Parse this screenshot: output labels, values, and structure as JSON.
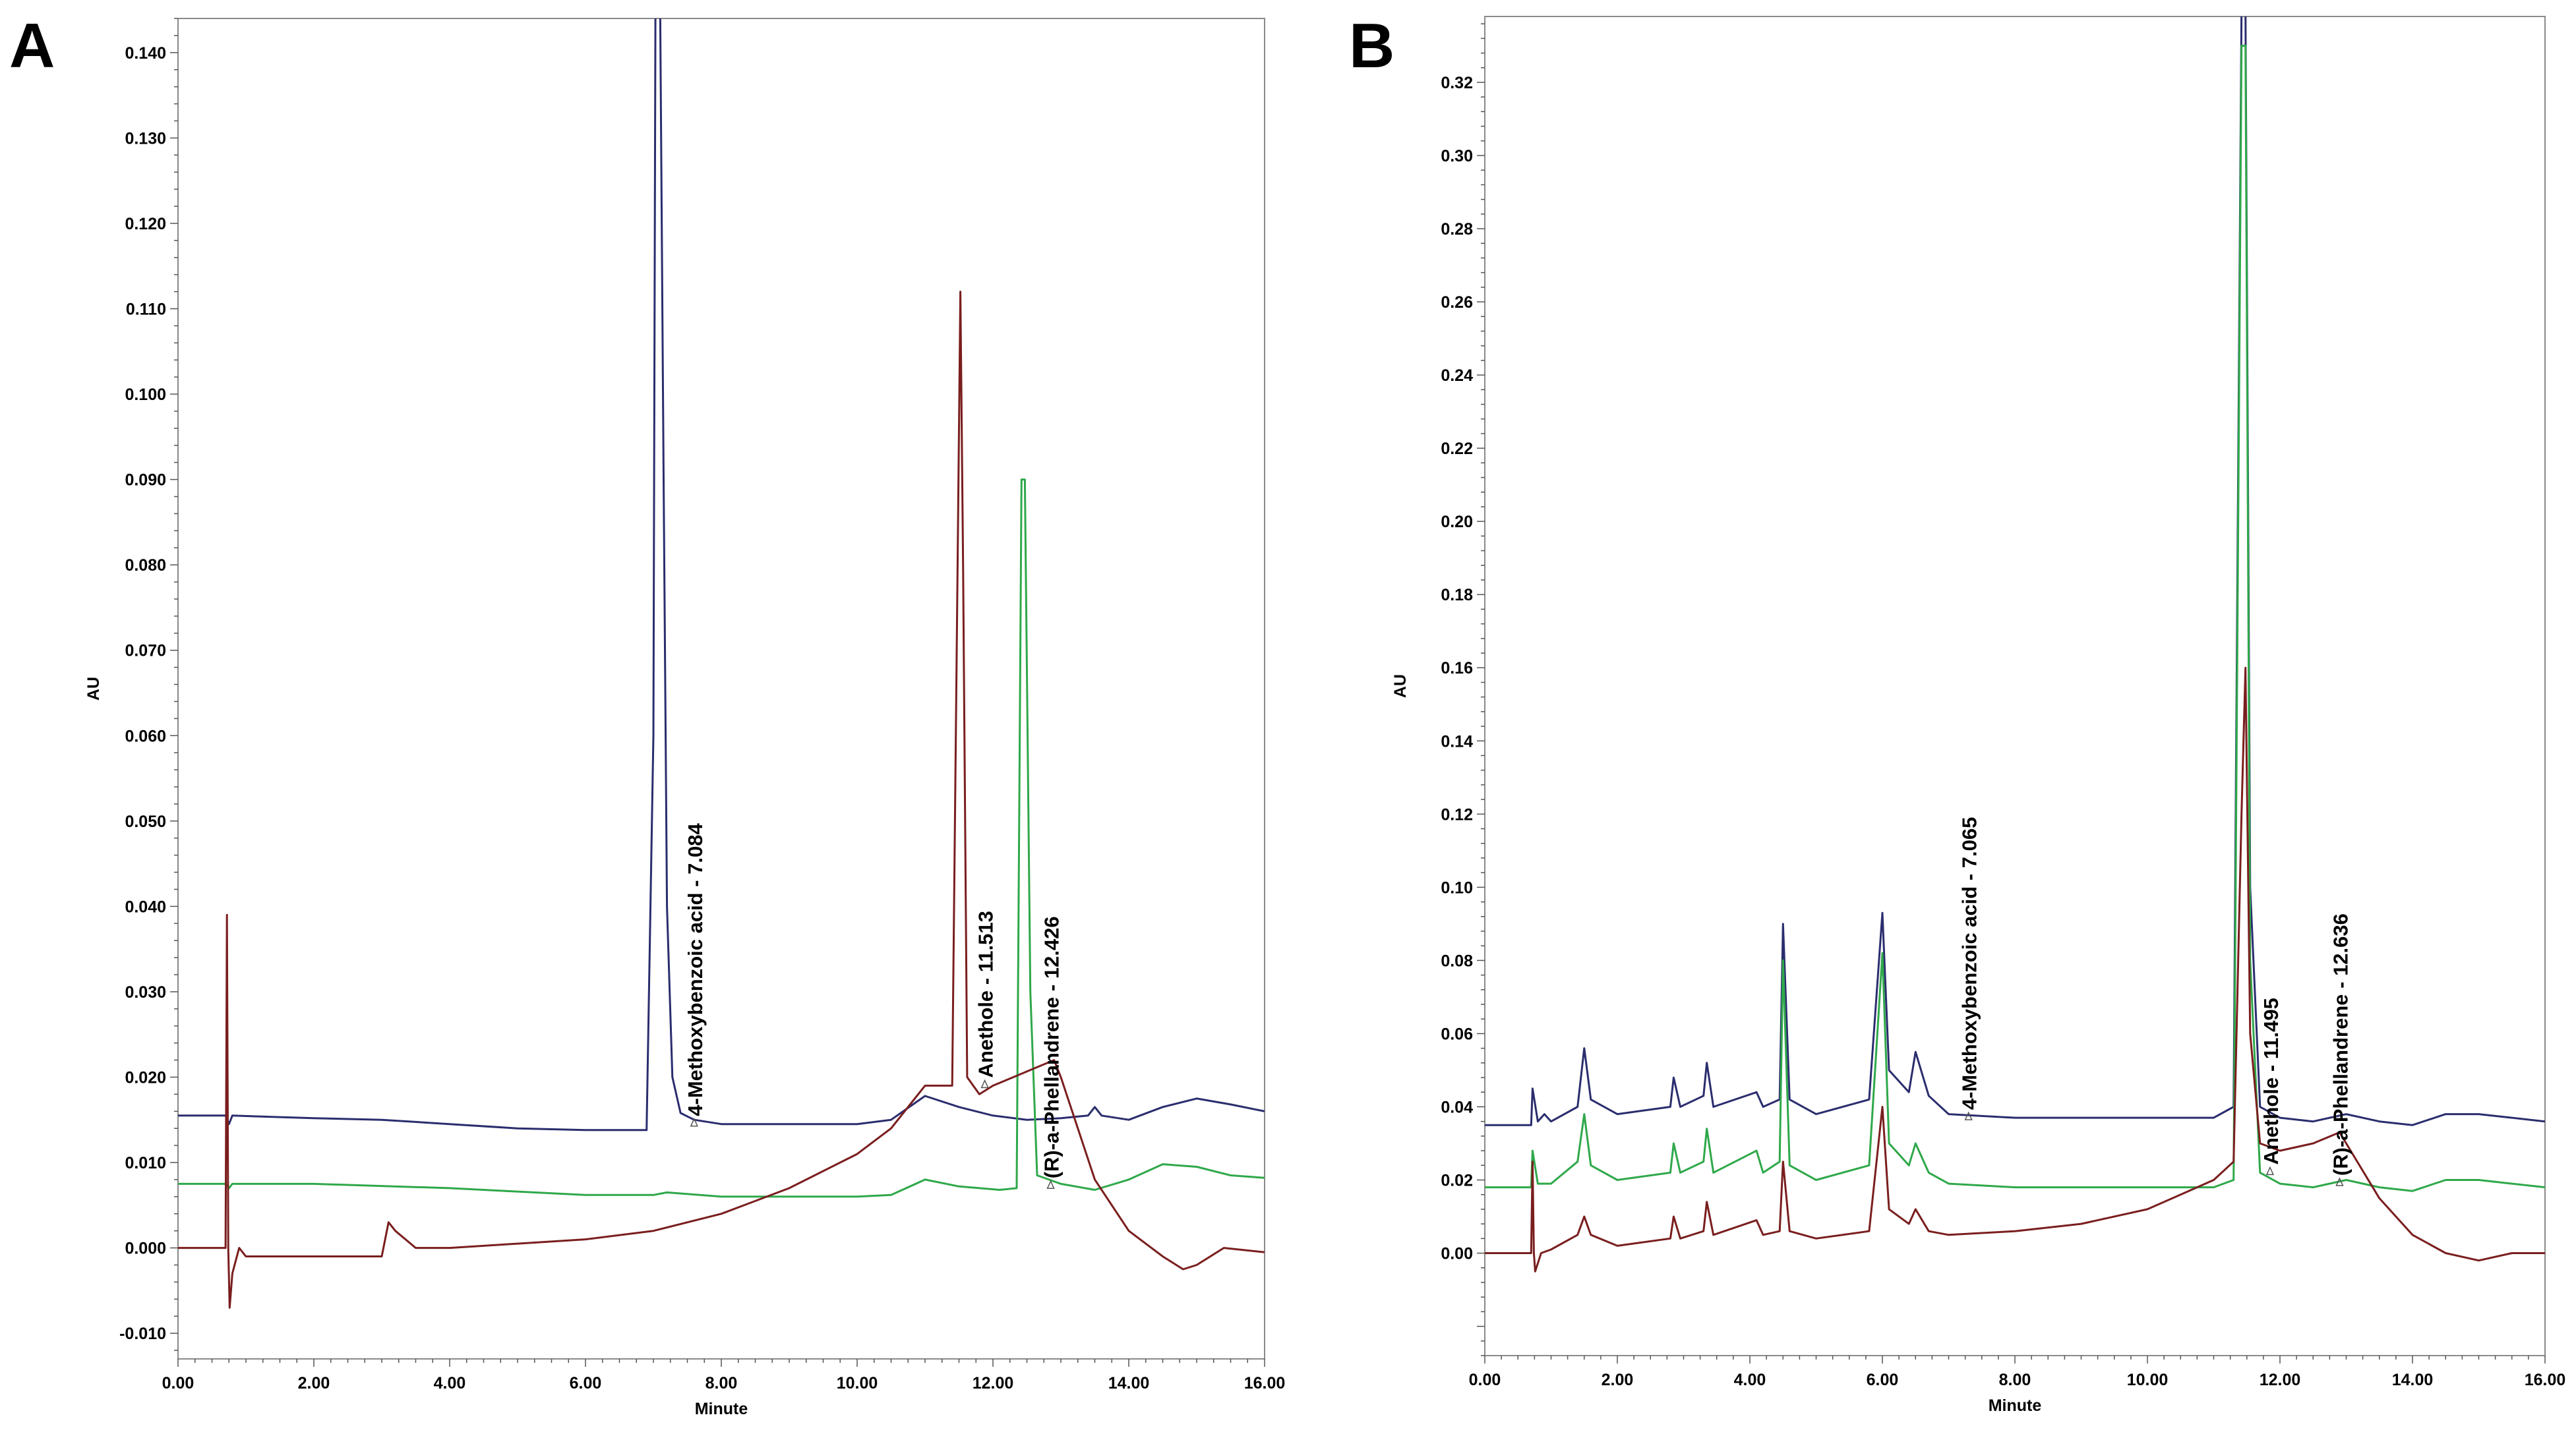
{
  "chart_data": [
    {
      "panel": "A",
      "type": "line",
      "xlabel": "Minute",
      "ylabel": "AU",
      "xlim": [
        0,
        16
      ],
      "ylim": [
        -0.013,
        0.144
      ],
      "x_ticks": [
        "0.00",
        "2.00",
        "4.00",
        "6.00",
        "8.00",
        "10.00",
        "12.00",
        "14.00",
        "16.00"
      ],
      "y_ticks": [
        "-0.010",
        "0.000",
        "0.010",
        "0.020",
        "0.030",
        "0.040",
        "0.050",
        "0.060",
        "0.070",
        "0.080",
        "0.090",
        "0.100",
        "0.110",
        "0.120",
        "0.130",
        "0.140"
      ],
      "series": [
        {
          "name": "blue",
          "color": "#2b2d6e",
          "points": [
            [
              0,
              0.0155
            ],
            [
              0.7,
              0.0155
            ],
            [
              0.75,
              0.0145
            ],
            [
              0.8,
              0.0155
            ],
            [
              2,
              0.0152
            ],
            [
              3,
              0.015
            ],
            [
              4,
              0.0145
            ],
            [
              5,
              0.014
            ],
            [
              6,
              0.0138
            ],
            [
              6.9,
              0.0138
            ],
            [
              7.0,
              0.06
            ],
            [
              7.03,
              0.145
            ],
            [
              7.1,
              0.145
            ],
            [
              7.15,
              0.09
            ],
            [
              7.2,
              0.04
            ],
            [
              7.28,
              0.02
            ],
            [
              7.4,
              0.0158
            ],
            [
              7.6,
              0.015
            ],
            [
              8,
              0.0145
            ],
            [
              9,
              0.0145
            ],
            [
              10,
              0.0145
            ],
            [
              10.5,
              0.015
            ],
            [
              11,
              0.0178
            ],
            [
              11.5,
              0.0165
            ],
            [
              12,
              0.0155
            ],
            [
              12.5,
              0.015
            ],
            [
              13,
              0.0152
            ],
            [
              13.4,
              0.0155
            ],
            [
              13.5,
              0.0165
            ],
            [
              13.6,
              0.0155
            ],
            [
              14,
              0.015
            ],
            [
              14.5,
              0.0165
            ],
            [
              15,
              0.0175
            ],
            [
              15.5,
              0.0168
            ],
            [
              16,
              0.016
            ]
          ]
        },
        {
          "name": "green",
          "color": "#2fa84a",
          "points": [
            [
              0,
              0.0075
            ],
            [
              0.7,
              0.0075
            ],
            [
              0.75,
              0.007
            ],
            [
              0.8,
              0.0075
            ],
            [
              2,
              0.0075
            ],
            [
              4,
              0.007
            ],
            [
              5,
              0.0066
            ],
            [
              6,
              0.0062
            ],
            [
              7,
              0.0062
            ],
            [
              7.2,
              0.0065
            ],
            [
              8,
              0.006
            ],
            [
              9,
              0.006
            ],
            [
              10,
              0.006
            ],
            [
              10.5,
              0.0062
            ],
            [
              11,
              0.008
            ],
            [
              11.5,
              0.0072
            ],
            [
              12.1,
              0.0068
            ],
            [
              12.35,
              0.007
            ],
            [
              12.42,
              0.09
            ],
            [
              12.47,
              0.09
            ],
            [
              12.55,
              0.03
            ],
            [
              12.65,
              0.0085
            ],
            [
              13,
              0.0075
            ],
            [
              13.5,
              0.0068
            ],
            [
              14,
              0.008
            ],
            [
              14.5,
              0.0098
            ],
            [
              15,
              0.0095
            ],
            [
              15.5,
              0.0085
            ],
            [
              16,
              0.0082
            ]
          ]
        },
        {
          "name": "red",
          "color": "#7a1e1e",
          "points": [
            [
              0,
              0.0
            ],
            [
              0.7,
              0.0
            ],
            [
              0.72,
              0.039
            ],
            [
              0.74,
              0.0
            ],
            [
              0.76,
              -0.007
            ],
            [
              0.8,
              -0.003
            ],
            [
              0.9,
              0.0
            ],
            [
              1,
              -0.001
            ],
            [
              2,
              -0.001
            ],
            [
              3,
              -0.001
            ],
            [
              3.1,
              0.003
            ],
            [
              3.2,
              0.002
            ],
            [
              3.5,
              0.0
            ],
            [
              4,
              0.0
            ],
            [
              5,
              0.0005
            ],
            [
              6,
              0.001
            ],
            [
              7,
              0.002
            ],
            [
              8,
              0.004
            ],
            [
              9,
              0.007
            ],
            [
              10,
              0.011
            ],
            [
              10.5,
              0.014
            ],
            [
              11,
              0.019
            ],
            [
              11.4,
              0.019
            ],
            [
              11.48,
              0.08
            ],
            [
              11.52,
              0.112
            ],
            [
              11.56,
              0.08
            ],
            [
              11.62,
              0.02
            ],
            [
              11.8,
              0.018
            ],
            [
              12,
              0.019
            ],
            [
              12.3,
              0.02
            ],
            [
              12.6,
              0.021
            ],
            [
              12.9,
              0.022
            ],
            [
              13,
              0.02
            ],
            [
              13.5,
              0.008
            ],
            [
              14,
              0.002
            ],
            [
              14.5,
              -0.001
            ],
            [
              14.8,
              -0.0025
            ],
            [
              15,
              -0.002
            ],
            [
              15.4,
              0.0
            ],
            [
              16,
              -0.0005
            ]
          ]
        }
      ],
      "annotations": [
        {
          "text": "4-Methoxybenzoic acid - 7.084",
          "x": 7.6,
          "y": 0.0145
        },
        {
          "text": "Anethole - 11.513",
          "x": 11.88,
          "y": 0.019
        },
        {
          "text": "(R)-a-Phellandrene - 12.426",
          "x": 12.85,
          "y": 0.0072
        }
      ]
    },
    {
      "panel": "B",
      "type": "line",
      "xlabel": "Minute",
      "ylabel": "AU",
      "xlim": [
        0,
        16
      ],
      "ylim": [
        -0.028,
        0.338
      ],
      "x_ticks": [
        "0.00",
        "2.00",
        "4.00",
        "6.00",
        "8.00",
        "10.00",
        "12.00",
        "14.00",
        "16.00"
      ],
      "y_ticks": [
        "0.00",
        "0.02",
        "0.04",
        "0.06",
        "0.08",
        "0.10",
        "0.12",
        "0.14",
        "0.16",
        "0.18",
        "0.20",
        "0.22",
        "0.24",
        "0.26",
        "0.28",
        "0.30",
        "0.32"
      ],
      "series": [
        {
          "name": "blue",
          "color": "#2b2d6e",
          "points": [
            [
              0,
              0.035
            ],
            [
              0.7,
              0.035
            ],
            [
              0.72,
              0.045
            ],
            [
              0.8,
              0.036
            ],
            [
              0.9,
              0.038
            ],
            [
              1,
              0.036
            ],
            [
              1.4,
              0.04
            ],
            [
              1.5,
              0.056
            ],
            [
              1.6,
              0.042
            ],
            [
              2,
              0.038
            ],
            [
              2.8,
              0.04
            ],
            [
              2.85,
              0.048
            ],
            [
              2.95,
              0.04
            ],
            [
              3.3,
              0.043
            ],
            [
              3.35,
              0.052
            ],
            [
              3.45,
              0.04
            ],
            [
              4.1,
              0.044
            ],
            [
              4.2,
              0.04
            ],
            [
              4.45,
              0.042
            ],
            [
              4.5,
              0.09
            ],
            [
              4.6,
              0.042
            ],
            [
              5,
              0.038
            ],
            [
              5.8,
              0.042
            ],
            [
              6.0,
              0.093
            ],
            [
              6.1,
              0.05
            ],
            [
              6.4,
              0.044
            ],
            [
              6.5,
              0.055
            ],
            [
              6.7,
              0.043
            ],
            [
              7,
              0.038
            ],
            [
              8,
              0.037
            ],
            [
              9,
              0.037
            ],
            [
              10,
              0.037
            ],
            [
              11,
              0.037
            ],
            [
              11.3,
              0.04
            ],
            [
              11.42,
              0.34
            ],
            [
              11.48,
              0.34
            ],
            [
              11.55,
              0.1
            ],
            [
              11.7,
              0.04
            ],
            [
              12,
              0.037
            ],
            [
              12.5,
              0.036
            ],
            [
              13,
              0.038
            ],
            [
              13.5,
              0.036
            ],
            [
              14,
              0.035
            ],
            [
              14.5,
              0.038
            ],
            [
              15,
              0.038
            ],
            [
              15.5,
              0.037
            ],
            [
              16,
              0.036
            ]
          ]
        },
        {
          "name": "green",
          "color": "#2fa84a",
          "points": [
            [
              0,
              0.018
            ],
            [
              0.7,
              0.018
            ],
            [
              0.72,
              0.028
            ],
            [
              0.8,
              0.019
            ],
            [
              1,
              0.019
            ],
            [
              1.4,
              0.025
            ],
            [
              1.5,
              0.038
            ],
            [
              1.6,
              0.024
            ],
            [
              2,
              0.02
            ],
            [
              2.8,
              0.022
            ],
            [
              2.85,
              0.03
            ],
            [
              2.95,
              0.022
            ],
            [
              3.3,
              0.025
            ],
            [
              3.35,
              0.034
            ],
            [
              3.45,
              0.022
            ],
            [
              4.1,
              0.028
            ],
            [
              4.2,
              0.022
            ],
            [
              4.45,
              0.025
            ],
            [
              4.5,
              0.08
            ],
            [
              4.6,
              0.024
            ],
            [
              5,
              0.02
            ],
            [
              5.8,
              0.024
            ],
            [
              6.0,
              0.082
            ],
            [
              6.1,
              0.03
            ],
            [
              6.4,
              0.024
            ],
            [
              6.5,
              0.03
            ],
            [
              6.7,
              0.022
            ],
            [
              7,
              0.019
            ],
            [
              8,
              0.018
            ],
            [
              9,
              0.018
            ],
            [
              10,
              0.018
            ],
            [
              11,
              0.018
            ],
            [
              11.3,
              0.02
            ],
            [
              11.42,
              0.33
            ],
            [
              11.48,
              0.33
            ],
            [
              11.55,
              0.08
            ],
            [
              11.7,
              0.022
            ],
            [
              12,
              0.019
            ],
            [
              12.5,
              0.018
            ],
            [
              13,
              0.02
            ],
            [
              13.5,
              0.018
            ],
            [
              14,
              0.017
            ],
            [
              14.5,
              0.02
            ],
            [
              15,
              0.02
            ],
            [
              15.5,
              0.019
            ],
            [
              16,
              0.018
            ]
          ]
        },
        {
          "name": "red",
          "color": "#7a1e1e",
          "points": [
            [
              0,
              0.0
            ],
            [
              0.7,
              0.0
            ],
            [
              0.72,
              0.025
            ],
            [
              0.74,
              0.0
            ],
            [
              0.76,
              -0.005
            ],
            [
              0.85,
              0.0
            ],
            [
              1,
              0.001
            ],
            [
              1.4,
              0.005
            ],
            [
              1.5,
              0.01
            ],
            [
              1.6,
              0.005
            ],
            [
              2,
              0.002
            ],
            [
              2.8,
              0.004
            ],
            [
              2.85,
              0.01
            ],
            [
              2.95,
              0.004
            ],
            [
              3.3,
              0.006
            ],
            [
              3.35,
              0.014
            ],
            [
              3.45,
              0.005
            ],
            [
              4.1,
              0.009
            ],
            [
              4.2,
              0.005
            ],
            [
              4.45,
              0.006
            ],
            [
              4.5,
              0.025
            ],
            [
              4.6,
              0.006
            ],
            [
              5,
              0.004
            ],
            [
              5.8,
              0.006
            ],
            [
              6.0,
              0.04
            ],
            [
              6.1,
              0.012
            ],
            [
              6.4,
              0.008
            ],
            [
              6.5,
              0.012
            ],
            [
              6.7,
              0.006
            ],
            [
              7,
              0.005
            ],
            [
              8,
              0.006
            ],
            [
              9,
              0.008
            ],
            [
              10,
              0.012
            ],
            [
              10.5,
              0.016
            ],
            [
              11,
              0.02
            ],
            [
              11.3,
              0.025
            ],
            [
              11.42,
              0.12
            ],
            [
              11.48,
              0.16
            ],
            [
              11.55,
              0.06
            ],
            [
              11.7,
              0.03
            ],
            [
              12,
              0.028
            ],
            [
              12.5,
              0.03
            ],
            [
              12.9,
              0.033
            ],
            [
              13,
              0.03
            ],
            [
              13.5,
              0.015
            ],
            [
              14,
              0.005
            ],
            [
              14.5,
              0.0
            ],
            [
              15,
              -0.002
            ],
            [
              15.5,
              0.0
            ],
            [
              16,
              0.0
            ]
          ]
        }
      ],
      "annotations": [
        {
          "text": "4-Methoxybenzoic acid - 7.065",
          "x": 7.3,
          "y": 0.037
        },
        {
          "text": "Anethole - 11.495",
          "x": 11.85,
          "y": 0.022
        },
        {
          "text": "(R)-a-Phellandrene - 12.636",
          "x": 12.9,
          "y": 0.019
        }
      ]
    }
  ]
}
